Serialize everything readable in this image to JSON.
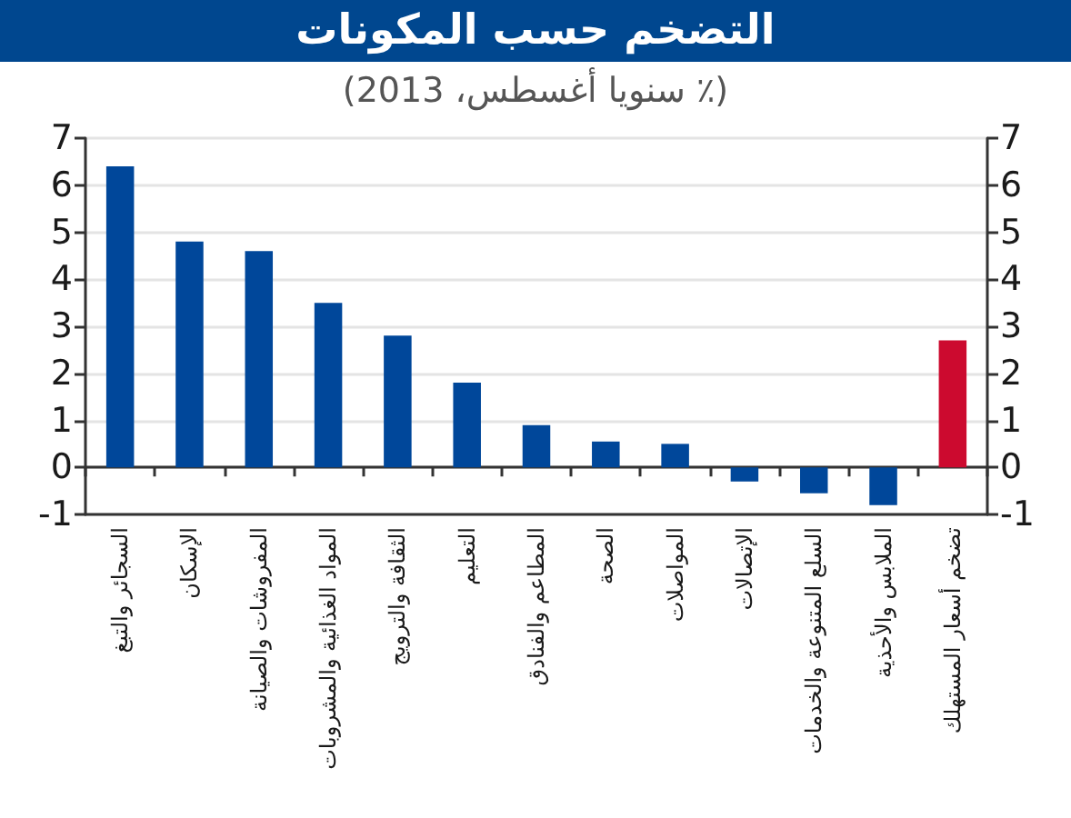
{
  "chart_data": {
    "type": "bar",
    "title": "التضخم حسب المكونات",
    "subtitle": "(٪ سنويا أغسطس، 2013)",
    "categories": [
      "السجائر والتبغ",
      "الإسكان",
      "المفروشات والصيانة",
      "المواد الغذائية والمشروبات",
      "الثقافة والترويج",
      "التعليم",
      "المطاعم والفنادق",
      "الصحة",
      "المواصلات",
      "الإتصالات",
      "السلع المتنوعة والخدمات",
      "الملابس والأحذية",
      "تضخم أسعار المستهلك"
    ],
    "values": [
      6.4,
      4.8,
      4.6,
      3.5,
      2.8,
      1.8,
      0.9,
      0.55,
      0.5,
      -0.3,
      -0.55,
      -0.8,
      2.7
    ],
    "colors": [
      "#00479a",
      "#00479a",
      "#00479a",
      "#00479a",
      "#00479a",
      "#00479a",
      "#00479a",
      "#00479a",
      "#00479a",
      "#00479a",
      "#00479a",
      "#00479a",
      "#cc0a2f"
    ],
    "ylim": [
      -1,
      7
    ],
    "yticks": [
      -1,
      0,
      1,
      2,
      3,
      4,
      5,
      6,
      7
    ],
    "y2lim": [
      -1,
      7
    ],
    "y2ticks": [
      -1,
      0,
      1,
      2,
      3,
      4,
      5,
      6,
      7
    ],
    "grid": "y"
  }
}
